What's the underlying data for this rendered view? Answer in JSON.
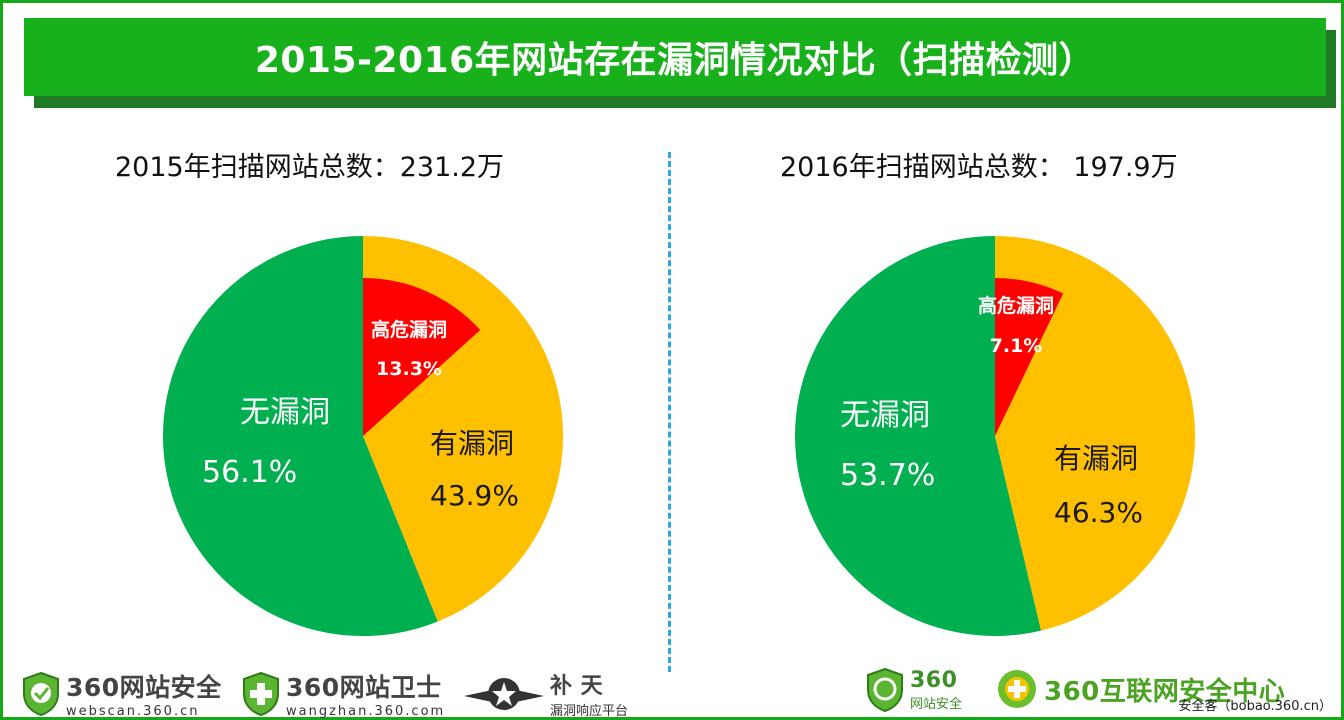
{
  "title": "2015-2016年网站存在漏洞情况对比（扫描检测）",
  "colors": {
    "banner": "#18b11b",
    "banner_shadow": "#1f7a26",
    "no_vuln": "#00b050",
    "has_vuln": "#ffc000",
    "high_risk": "#ff0000",
    "divider": "#2aa7e0"
  },
  "chart_data": [
    {
      "type": "pie",
      "title": "2015年扫描网站总数：231.2万",
      "slices": [
        {
          "label": "无漏洞",
          "value": 56.1,
          "value_label": "56.1%",
          "color": "#00b050"
        },
        {
          "label": "有漏洞",
          "value": 43.9,
          "value_label": "43.9%",
          "color": "#ffc000"
        }
      ],
      "sub_slice": {
        "label": "高危漏洞",
        "value": 13.3,
        "value_label": "13.3%",
        "color": "#ff0000"
      }
    },
    {
      "type": "pie",
      "title": "2016年扫描网站总数： 197.9万",
      "slices": [
        {
          "label": "无漏洞",
          "value": 53.7,
          "value_label": "53.7%",
          "color": "#00b050"
        },
        {
          "label": "有漏洞",
          "value": 46.3,
          "value_label": "46.3%",
          "color": "#ffc000"
        }
      ],
      "sub_slice": {
        "label": "高危漏洞",
        "value": 7.1,
        "value_label": "7.1%",
        "color": "#ff0000"
      }
    }
  ],
  "logos": [
    {
      "main": "360网站安全",
      "sub": "webscan.360.cn",
      "icon": "shield-check-icon"
    },
    {
      "main": "360网站卫士",
      "sub": "wangzhan.360.com",
      "icon": "shield-plus-icon"
    },
    {
      "main": "补 天",
      "sub": "漏洞响应平台",
      "icon": "star-wings-icon"
    },
    {
      "main": "360",
      "sub": "网站安全",
      "icon": "shield-globe-icon"
    },
    {
      "main": "360互联网安全中心",
      "sub": "",
      "icon": "360-circle-icon"
    }
  ],
  "credit": "安全客（bobao.360.cn）"
}
